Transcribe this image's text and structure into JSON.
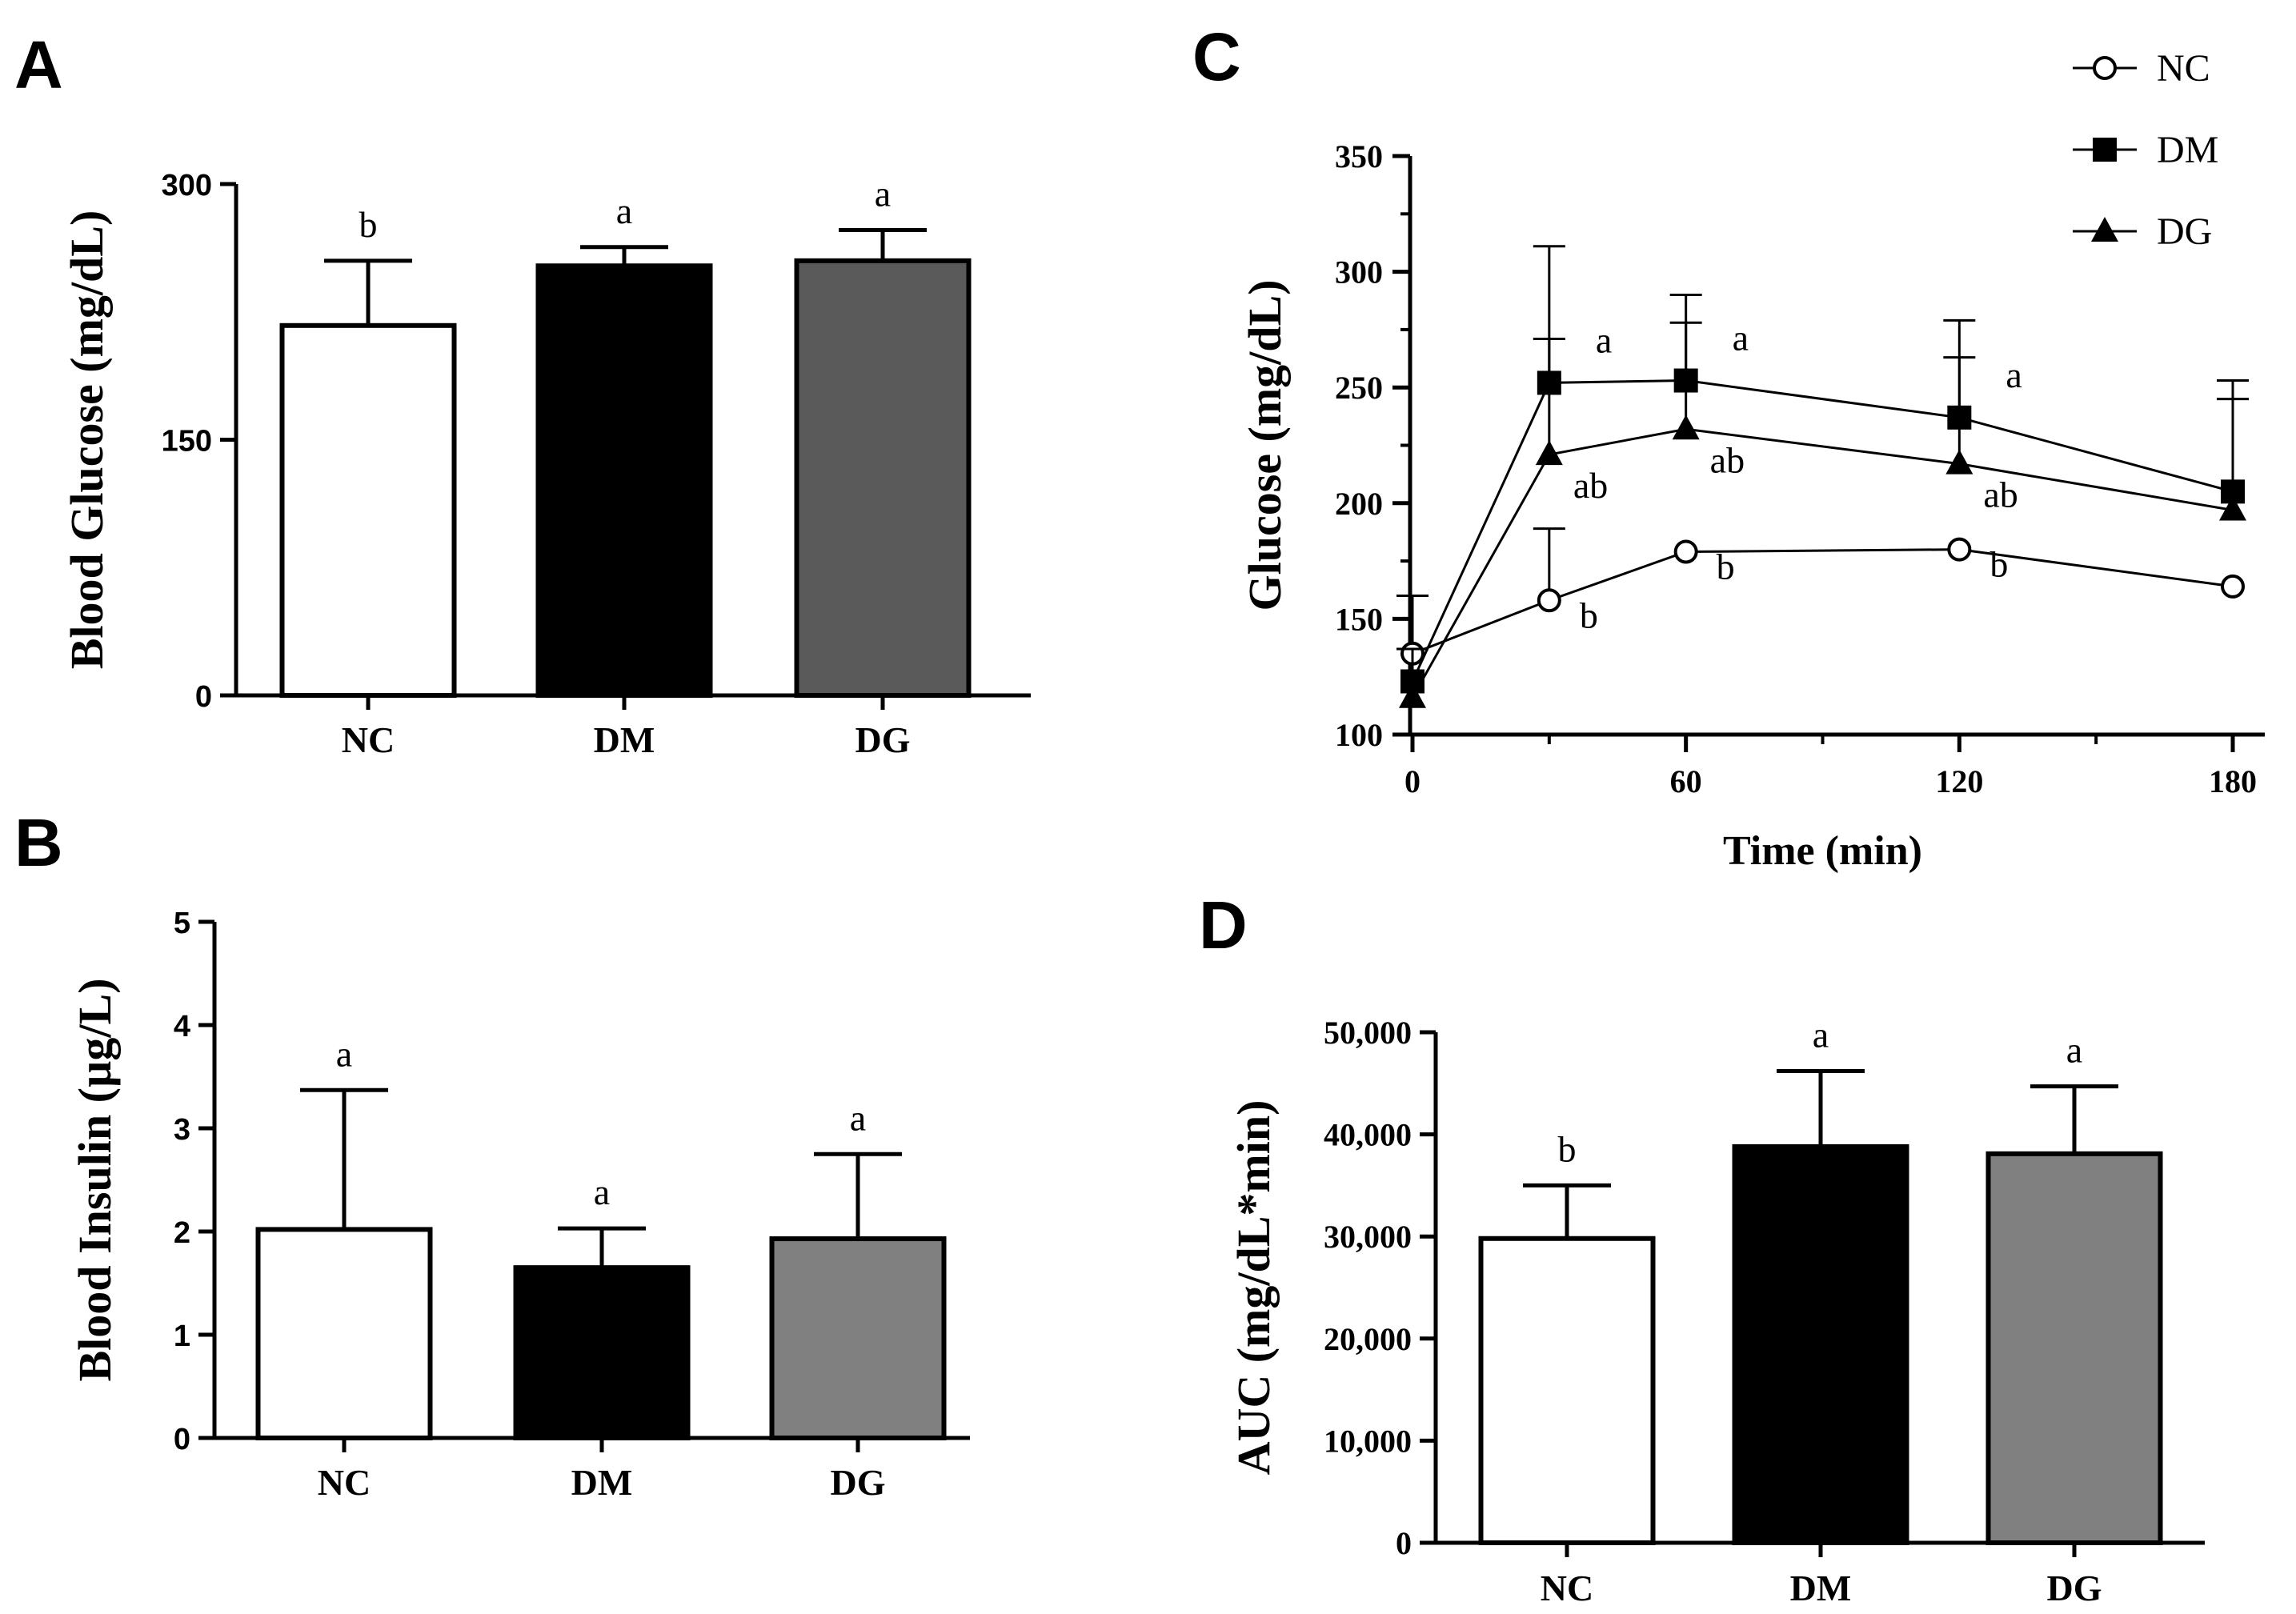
{
  "chart_data": [
    {
      "panel": "A",
      "type": "bar",
      "ylabel": "Blood Glucose (mg/dL)",
      "ylim": [
        0,
        300
      ],
      "yticks": [
        "0",
        "150",
        "300"
      ],
      "categories": [
        "NC",
        "DM",
        "DG"
      ],
      "values": [
        217,
        252,
        255
      ],
      "errors": [
        38,
        11,
        18
      ],
      "colors": [
        "#ffffff",
        "#000000",
        "#5a5a5a"
      ],
      "significance": [
        "b",
        "a",
        "a"
      ]
    },
    {
      "panel": "B",
      "type": "bar",
      "ylabel": "Blood Insulin (µg/L)",
      "ylim": [
        0,
        5
      ],
      "yticks": [
        "0",
        "1",
        "2",
        "3",
        "4",
        "5"
      ],
      "categories": [
        "NC",
        "DM",
        "DG"
      ],
      "values": [
        2.02,
        1.65,
        1.93
      ],
      "errors": [
        1.35,
        0.38,
        0.82
      ],
      "colors": [
        "#ffffff",
        "#000000",
        "#808080"
      ],
      "significance": [
        "a",
        "a",
        "a"
      ]
    },
    {
      "panel": "C",
      "type": "line",
      "xlabel": "Time (min)",
      "ylabel": "Glucose (mg/dL)",
      "xlim": [
        0,
        180
      ],
      "ylim": [
        100,
        350
      ],
      "xticks": [
        "0",
        "60",
        "120",
        "180"
      ],
      "yticks": [
        "100",
        "150",
        "200",
        "250",
        "300",
        "350"
      ],
      "x": [
        0,
        30,
        60,
        120,
        180
      ],
      "legend_position": "top-right",
      "series": [
        {
          "name": "NC",
          "marker": "open-circle",
          "values": [
            135,
            158,
            179,
            180,
            164
          ],
          "errors": [
            25,
            31,
            0,
            0,
            0
          ],
          "labels": [
            "",
            "b",
            "b",
            "b",
            ""
          ]
        },
        {
          "name": "DM",
          "marker": "filled-square",
          "values": [
            123,
            252,
            253,
            237,
            205
          ],
          "errors": [
            14,
            59,
            37,
            42,
            48
          ],
          "labels": [
            "",
            "a",
            "a",
            "a",
            ""
          ]
        },
        {
          "name": "DG",
          "marker": "filled-triangle",
          "values": [
            116,
            221,
            232,
            217,
            197
          ],
          "errors": [
            0,
            50,
            46,
            46,
            48
          ],
          "labels": [
            "",
            "ab",
            "ab",
            "ab",
            ""
          ]
        }
      ]
    },
    {
      "panel": "D",
      "type": "bar",
      "ylabel": "AUC (mg/dL*min)",
      "ylim": [
        0,
        50000
      ],
      "yticks": [
        "0",
        "10,000",
        "20,000",
        "30,000",
        "40,000",
        "50,000"
      ],
      "categories": [
        "NC",
        "DM",
        "DG"
      ],
      "values": [
        29800,
        38800,
        38100
      ],
      "errors": [
        5200,
        7400,
        6600
      ],
      "colors": [
        "#ffffff",
        "#000000",
        "#808080"
      ],
      "significance": [
        "b",
        "a",
        "a"
      ]
    }
  ]
}
